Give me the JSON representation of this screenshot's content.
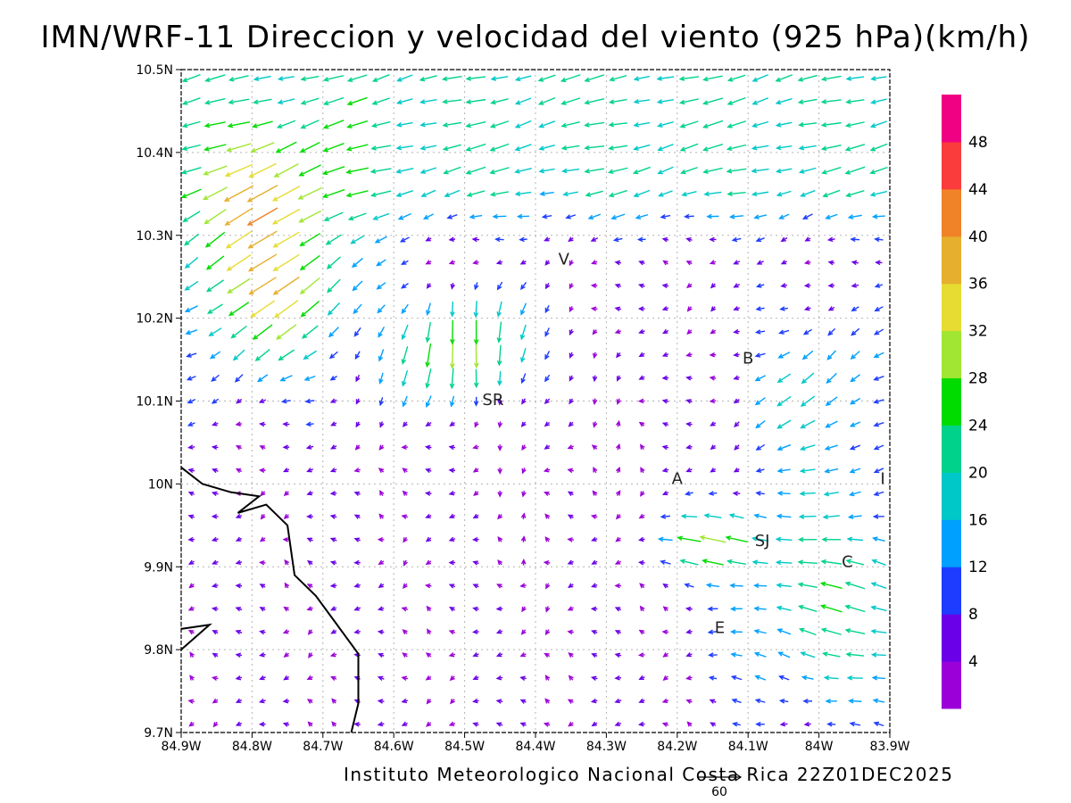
{
  "title": "IMN/WRF-11 Direccion y velocidad del viento (925 hPa)(km/h)",
  "credit": "Instituto Meteorologico Nacional Costa Rica 22Z01DEC2025",
  "reference_vector": {
    "label": "60",
    "speed": 60
  },
  "map": {
    "lon_range": [
      -84.9,
      -83.9
    ],
    "lat_range": [
      9.7,
      10.5
    ],
    "lon_ticks": [
      {
        "value": -84.9,
        "label": "84.9W"
      },
      {
        "value": -84.8,
        "label": "84.8W"
      },
      {
        "value": -84.7,
        "label": "84.7W"
      },
      {
        "value": -84.6,
        "label": "84.6W"
      },
      {
        "value": -84.5,
        "label": "84.5W"
      },
      {
        "value": -84.4,
        "label": "84.4W"
      },
      {
        "value": -84.3,
        "label": "84.3W"
      },
      {
        "value": -84.2,
        "label": "84.2W"
      },
      {
        "value": -84.1,
        "label": "84.1W"
      },
      {
        "value": -84.0,
        "label": "84W"
      },
      {
        "value": -83.9,
        "label": "83.9W"
      }
    ],
    "lat_ticks": [
      {
        "value": 9.7,
        "label": "9.7N"
      },
      {
        "value": 9.8,
        "label": "9.8N"
      },
      {
        "value": 9.9,
        "label": "9.9N"
      },
      {
        "value": 10.0,
        "label": "10N"
      },
      {
        "value": 10.1,
        "label": "10.1N"
      },
      {
        "value": 10.2,
        "label": "10.2N"
      },
      {
        "value": 10.3,
        "label": "10.3N"
      },
      {
        "value": 10.4,
        "label": "10.4N"
      },
      {
        "value": 10.5,
        "label": "10.5N"
      }
    ],
    "grid": true,
    "places": [
      {
        "label": "V",
        "lon": -84.36,
        "lat": 10.265
      },
      {
        "label": "B",
        "lon": -84.1,
        "lat": 10.145
      },
      {
        "label": "SR",
        "lon": -84.46,
        "lat": 10.095
      },
      {
        "label": "A",
        "lon": -84.2,
        "lat": 10.0
      },
      {
        "label": "I",
        "lon": -83.91,
        "lat": 10.0
      },
      {
        "label": "SJ",
        "lon": -84.08,
        "lat": 9.925
      },
      {
        "label": "C",
        "lon": -83.96,
        "lat": 9.9
      },
      {
        "label": "E",
        "lon": -84.14,
        "lat": 9.82
      }
    ],
    "coastline": [
      [
        -84.9,
        10.02
      ],
      [
        -84.87,
        10.0
      ],
      [
        -84.83,
        9.99
      ],
      [
        -84.79,
        9.985
      ],
      [
        -84.82,
        9.965
      ],
      [
        -84.78,
        9.975
      ],
      [
        -84.75,
        9.95
      ],
      [
        -84.74,
        9.89
      ],
      [
        -84.71,
        9.865
      ],
      [
        -84.68,
        9.83
      ],
      [
        -84.65,
        9.795
      ],
      [
        -84.65,
        9.735
      ],
      [
        -84.66,
        9.7
      ]
    ],
    "coastline_2": [
      [
        -84.9,
        9.825
      ],
      [
        -84.86,
        9.83
      ],
      [
        -84.9,
        9.8
      ]
    ]
  },
  "colorbar": {
    "levels": [
      4,
      8,
      12,
      16,
      20,
      24,
      28,
      32,
      36,
      40,
      44,
      48
    ],
    "colors": [
      "#9b00d8",
      "#6a00e8",
      "#1e3cff",
      "#00a0ff",
      "#00c8c8",
      "#00d28c",
      "#00dc00",
      "#a0e632",
      "#e6dc32",
      "#e6af2d",
      "#f08228",
      "#fa3c3c",
      "#f00082"
    ]
  },
  "chart_data": {
    "type": "vector_field",
    "title": "IMN/WRF-11 Direccion y velocidad del viento (925 hPa)(km/h)",
    "units": "km/h",
    "description_regions": [
      {
        "region": "north-west",
        "lon": [
          -84.9,
          -84.7
        ],
        "lat": [
          10.2,
          10.4
        ],
        "direction": "from NE",
        "speed_range": [
          28,
          46
        ]
      },
      {
        "region": "north",
        "lon": [
          -84.7,
          -84.0
        ],
        "lat": [
          10.35,
          10.5
        ],
        "direction": "from E/NE",
        "speed_range": [
          12,
          28
        ]
      },
      {
        "region": "central north",
        "lon": [
          -84.6,
          -84.3
        ],
        "lat": [
          10.1,
          10.2
        ],
        "direction": "from N",
        "speed_range": [
          20,
          36
        ]
      },
      {
        "region": "central",
        "lon": [
          -84.4,
          -84.2
        ],
        "lat": [
          9.9,
          10.1
        ],
        "direction": "weak/variable",
        "speed_range": [
          0,
          8
        ]
      },
      {
        "region": "south-east",
        "lon": [
          -84.1,
          -83.9
        ],
        "lat": [
          9.75,
          9.95
        ],
        "direction": "from E",
        "speed_range": [
          16,
          24
        ]
      },
      {
        "region": "south-west",
        "lon": [
          -84.9,
          -84.6
        ],
        "lat": [
          9.7,
          10.0
        ],
        "direction": "from E",
        "speed_range": [
          4,
          12
        ]
      }
    ]
  }
}
